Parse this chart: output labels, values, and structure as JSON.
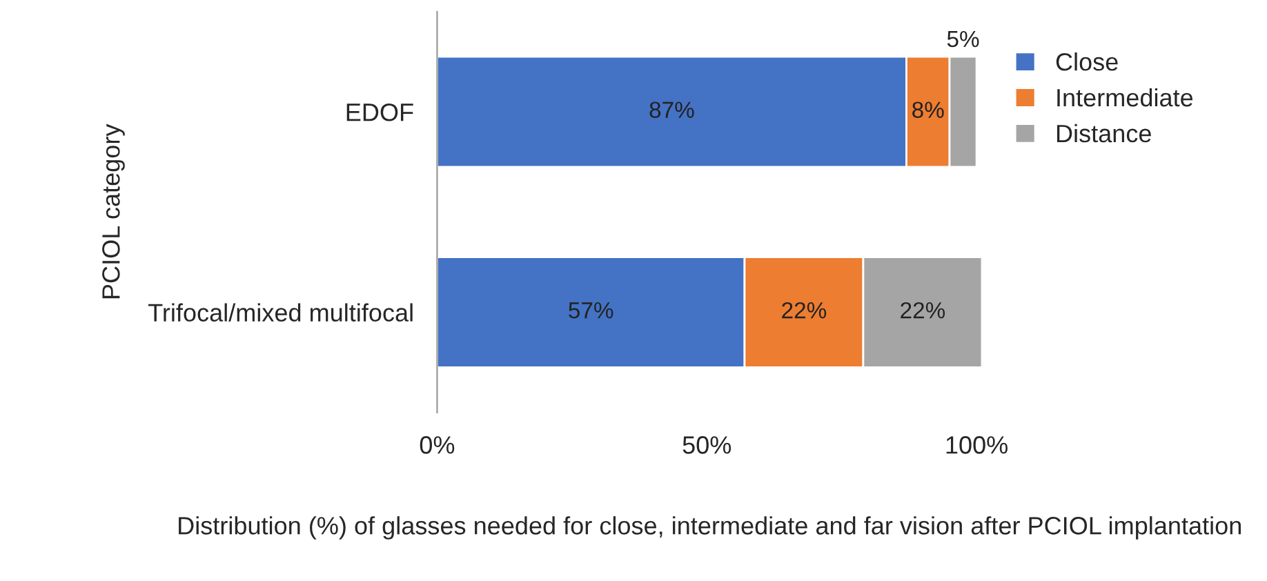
{
  "chart_data": {
    "type": "bar",
    "orientation": "horizontal",
    "stacked": true,
    "ylabel": "PCIOL category",
    "xlabel": "Distribution (%) of glasses needed for close, intermediate and far vision after PCIOL implantation",
    "categories": [
      "EDOF",
      "Trifocal/mixed multifocal"
    ],
    "series": [
      {
        "name": "Close",
        "color": "#4472c4",
        "values": [
          87,
          57
        ],
        "value_labels": [
          "87%",
          "57%"
        ]
      },
      {
        "name": "Intermediate",
        "color": "#ed7d31",
        "values": [
          8,
          22
        ],
        "value_labels": [
          "8%",
          "22%"
        ]
      },
      {
        "name": "Distance",
        "color": "#a5a5a5",
        "values": [
          5,
          22
        ],
        "value_labels": [
          "5%",
          "22%"
        ]
      }
    ],
    "xlim": [
      0,
      101
    ],
    "xticks": [
      {
        "value": 0,
        "label": "0%"
      },
      {
        "value": 50,
        "label": "50%"
      },
      {
        "value": 100,
        "label": "100%"
      }
    ],
    "legend": "right",
    "grid": false
  }
}
